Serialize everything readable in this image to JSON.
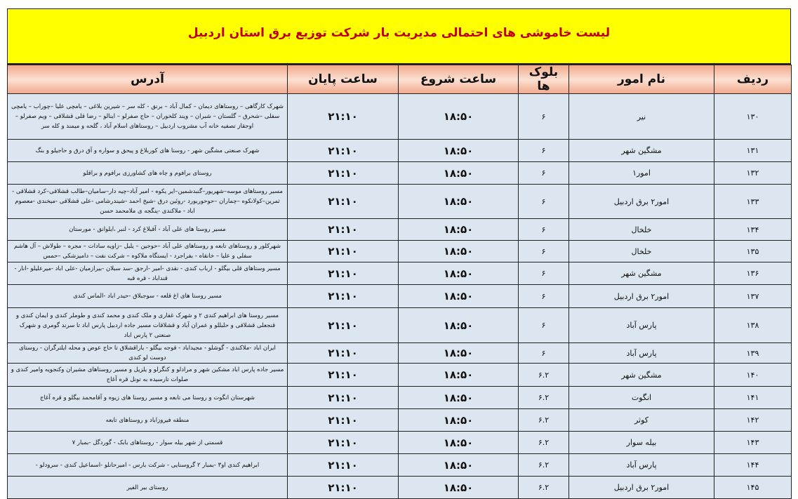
{
  "title": "لیست خاموشی های احتمالی  مدیریت بار  شرکت توزیع برق استان اردبیل",
  "colors": {
    "title_bg": "#ffff00",
    "title_text": "#c00000",
    "header_bg": "#f4b896",
    "row_bg": "#dce6f1"
  },
  "headers": {
    "radif": "ردیف",
    "name": "نام امور",
    "blocks": "بلوک ها",
    "start": "ساعت شروع",
    "end": "ساعت پایان",
    "address": "آدرس"
  },
  "rows": [
    {
      "radif": "۱۳۰",
      "name": "نیر",
      "blocks": "۶",
      "start": "۱۸:۵۰",
      "end": "۲۱:۱۰",
      "address": "شهرک کارگاهی – روستاهای دیمان – کمال آباد – برنق  - کله سر – شیرین بلاغی – یامچی علیا –چوراب – یامچی سفلی –شحرق – گلستان – شبران – ویند کلخوران – حاج صفرلو – اینالو – رضا قلی قشلاقی – ویم صفرلو – اوجقاز تصفیه خانه آب مشروب اردبیل – روستاهای اسلام آباد ، گلحه و میمند و کله سر",
      "h": 65
    },
    {
      "radif": "۱۳۱",
      "name": "مشگین شهر",
      "blocks": "۶",
      "start": "۱۸:۵۰",
      "end": "۲۱:۱۰",
      "address": "شهرک صنعتی مشگین شهر - روستا های کوربلاغ و پیحق و سواره و آق درق و حاجیلو و بنگ",
      "h": 32
    },
    {
      "radif": "۱۳۲",
      "name": "امور۱",
      "blocks": "۶",
      "start": "۱۸:۵۰",
      "end": "۲۱:۱۰",
      "address": "روستای برافوم و چاه های کشاورزی برافوم و براقلو",
      "h": 32
    },
    {
      "radif": "۱۳۳",
      "name": "امور۲ برق اردبیل",
      "blocks": "۶",
      "start": "۱۸:۵۰",
      "end": "۲۱:۱۰",
      "address": "مسیر روستاهای موسه–شهریور–گنبدشمین–ایر یکوه - امیر آباد–چیه دار–سامیان–طالب قشلاقی–کرد قشلاقی - ثمرین–کولانکوه –چماران –حوحوربورد -روئین درق -شیخ احمد -شیندرشامی -علی قشلاقی -میخندی -معصوم اباد - ملاکندی -ینگجه ی ملامحمد حسن",
      "h": 49
    },
    {
      "radif": "۱۳۴",
      "name": "خلخال",
      "blocks": "۶",
      "start": "۱۸:۵۰",
      "end": "۲۱:۱۰",
      "address": "مسیر روستا های علی آباد - آقبلاغ کرد - لنبر ،ایلوانق  - مورستان",
      "h": 31
    },
    {
      "radif": "۱۳۵",
      "name": "خلخال",
      "blocks": "۶",
      "start": "۱۸:۵۰",
      "end": "۲۱:۱۰",
      "address": "شهرکلور و روستاهای تابعه و روستاهای علی آباد –حوجین – یلبل –زاویه سادات – مجره – طولاش – آل هاشم سفلی و علیا – خانقاه - بفراجرد - ایستگاه ملاکوه – شرکت نفت – دامیزشکی –حمس",
      "h": 31
    },
    {
      "radif": "۱۳۶",
      "name": "مشگین شهر",
      "blocks": "۶",
      "start": "۱۸:۵۰",
      "end": "۲۱:۱۰",
      "address": "مسیر وستاهای قلی بیگلو - ارباب کندی - نقدی -امیر -ارجق -سد سبلان -بیرازمیان -علی اباد -میرعلیلو -انار - قنداباد - قره قبه",
      "h": 32
    },
    {
      "radif": "۱۳۷",
      "name": "امور۲ برق اردبیل",
      "blocks": "۶",
      "start": "۱۸:۵۰",
      "end": "۲۱:۱۰",
      "address": "مسیر روستا های اغ قلعه  - سوجبلاق  -حیدر اباد  -الماس کندی",
      "h": 33
    },
    {
      "radif": "۱۳۸",
      "name": "پارس آباد",
      "blocks": "۶",
      "start": "۱۸:۵۰",
      "end": "۲۱:۱۰",
      "address": "مسیر روستا های ابراهیم کندی ۲ و شهرک غفاری و ملک کندی و محمد کندی و طوملر کندی و ایمان کندی و قنجعلی قشلاقی و حلبللو و عمران آباد و قشلاقات مسیر جاده اردبیل پارس اباد تا سرند گومری و شهرک صنعتی ۲ پارس اباد",
      "h": 50
    },
    {
      "radif": "۱۳۹",
      "name": "پارس آباد",
      "blocks": "۶",
      "start": "۱۸:۵۰",
      "end": "۲۱:۱۰",
      "address": "ایران اباد -ملاکندی - گوشلو - مجیداباد - قوجه بیگلو - باراقشلاق تا حاج عوض و محله ایلترگران  - روستای دوست لو کندی",
      "h": 29
    },
    {
      "radif": "۱۴۰",
      "name": "مشگین شهر",
      "blocks": "۶.۲",
      "start": "۱۸:۵۰",
      "end": "۲۱:۱۰",
      "address": "مسیر جاده پارس اباد مشکین شهر و مرادلو و کنگرلو و یلزیل و مسیر روستاهای مشیران وکنجویه وامیر کندی و صلوات تارسیده به تونل قره آغاج",
      "h": 33
    },
    {
      "radif": "۱۴۱",
      "name": "انگوت",
      "blocks": "۶.۲",
      "start": "۱۸:۵۰",
      "end": "۲۱:۱۰",
      "address": "شهرستان انگوت و روستا می تابعه و مسیر روستا های زیوه و آقامحمد بیگلو و قره آغاج",
      "h": 32
    },
    {
      "radif": "۱۴۲",
      "name": "کوثر",
      "blocks": "۶.۲",
      "start": "۱۸:۵۰",
      "end": "۲۱:۱۰",
      "address": "منطقه فیروزاباد و روستاهای تابعه",
      "h": 32
    },
    {
      "radif": "۱۴۳",
      "name": "بیله سوار",
      "blocks": "۶.۲",
      "start": "۱۸:۵۰",
      "end": "۲۱:۱۰",
      "address": "قسمتی از شهر بیله سوار  - روستاهای بابک - گوردگل  -بمبار ۷",
      "h": 32
    },
    {
      "radif": "۱۴۴",
      "name": "پارس آباد",
      "blocks": "۶.۲",
      "start": "۱۸:۵۰",
      "end": "۲۱:۱۰",
      "address": "ابراهیم کندی او۳  -بمبار ۲ گروسنایی -  شرکت بارس  - امیرحانلو -اسماعیل کندی  - سرودلو -",
      "h": 32
    },
    {
      "radif": "۱۴۵",
      "name": "امور۲ برق اردبیل",
      "blocks": "۶.۲",
      "start": "۱۸:۵۰",
      "end": "۲۱:۱۰",
      "address": "روستای بیر الفیر",
      "h": 32
    }
  ]
}
